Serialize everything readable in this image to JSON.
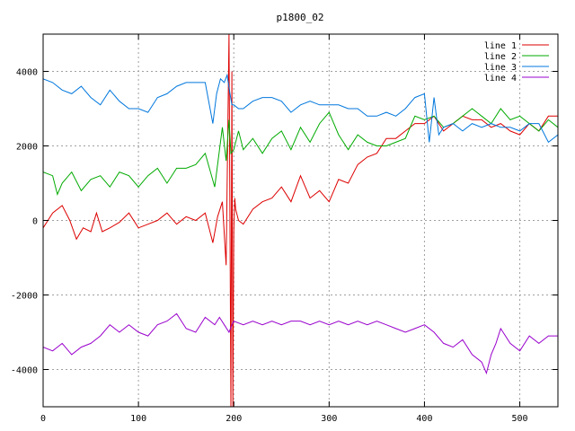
{
  "chart_data": {
    "type": "line",
    "title": "p1800_02",
    "xlabel": "",
    "ylabel": "",
    "xlim": [
      0,
      540
    ],
    "ylim": [
      -5000,
      5000
    ],
    "x_ticks": [
      0,
      100,
      200,
      300,
      400,
      500
    ],
    "y_ticks": [
      -4000,
      -2000,
      0,
      2000,
      4000
    ],
    "grid": true,
    "legend_position": "top-right",
    "series": [
      {
        "name": "line 1",
        "color": "#dd0000",
        "x": [
          0,
          10,
          20,
          28,
          35,
          42,
          50,
          56,
          62,
          70,
          80,
          90,
          100,
          110,
          120,
          130,
          140,
          150,
          160,
          170,
          178,
          183,
          188,
          192,
          195,
          197,
          198,
          199,
          200,
          201,
          202,
          205,
          210,
          220,
          230,
          240,
          250,
          260,
          270,
          280,
          290,
          300,
          310,
          320,
          330,
          340,
          350,
          360,
          370,
          380,
          390,
          400,
          410,
          420,
          430,
          440,
          450,
          460,
          470,
          480,
          490,
          500,
          510,
          520,
          530,
          540
        ],
        "y": [
          -200,
          200,
          400,
          0,
          -500,
          -200,
          -300,
          200,
          -300,
          -200,
          -50,
          200,
          -200,
          -100,
          0,
          200,
          -100,
          100,
          0,
          200,
          -600,
          100,
          500,
          -1200,
          5000,
          -5000,
          4000,
          -5000,
          -300,
          600,
          300,
          0,
          -100,
          300,
          500,
          600,
          900,
          500,
          1200,
          600,
          800,
          500,
          1100,
          1000,
          1500,
          1700,
          1800,
          2200,
          2200,
          2400,
          2600,
          2600,
          2800,
          2400,
          2600,
          2800,
          2700,
          2700,
          2500,
          2600,
          2400,
          2300,
          2600,
          2400,
          2800,
          2800
        ]
      },
      {
        "name": "line 2",
        "color": "#00aa00",
        "x": [
          0,
          10,
          15,
          20,
          30,
          40,
          50,
          60,
          70,
          80,
          90,
          100,
          110,
          120,
          130,
          140,
          150,
          160,
          170,
          180,
          188,
          192,
          195,
          197,
          200,
          205,
          210,
          220,
          230,
          240,
          250,
          260,
          270,
          280,
          290,
          300,
          310,
          320,
          330,
          340,
          350,
          360,
          370,
          380,
          390,
          400,
          410,
          420,
          430,
          440,
          450,
          460,
          470,
          480,
          490,
          500,
          510,
          520,
          530,
          540
        ],
        "y": [
          1300,
          1200,
          700,
          1000,
          1300,
          800,
          1100,
          1200,
          900,
          1300,
          1200,
          900,
          1200,
          1400,
          1000,
          1400,
          1400,
          1500,
          1800,
          900,
          2500,
          1600,
          2700,
          1800,
          1900,
          2400,
          1900,
          2200,
          1800,
          2200,
          2400,
          1900,
          2500,
          2100,
          2600,
          2900,
          2300,
          1900,
          2300,
          2100,
          2000,
          2000,
          2100,
          2200,
          2800,
          2700,
          2800,
          2500,
          2600,
          2800,
          3000,
          2800,
          2600,
          3000,
          2700,
          2800,
          2600,
          2400,
          2700,
          2500
        ]
      },
      {
        "name": "line 3",
        "color": "#0077dd",
        "x": [
          0,
          10,
          20,
          30,
          40,
          50,
          60,
          70,
          80,
          90,
          100,
          110,
          120,
          130,
          140,
          150,
          160,
          170,
          178,
          182,
          186,
          190,
          193,
          196,
          198,
          200,
          205,
          210,
          220,
          230,
          240,
          250,
          260,
          270,
          280,
          290,
          300,
          310,
          320,
          330,
          340,
          350,
          360,
          370,
          380,
          390,
          400,
          405,
          410,
          415,
          420,
          430,
          440,
          450,
          460,
          470,
          480,
          490,
          500,
          510,
          520,
          530,
          540
        ],
        "y": [
          3800,
          3700,
          3500,
          3400,
          3600,
          3300,
          3100,
          3500,
          3200,
          3000,
          3000,
          2900,
          3300,
          3400,
          3600,
          3700,
          3700,
          3700,
          2600,
          3400,
          3800,
          3700,
          3900,
          3400,
          3100,
          3100,
          3000,
          3000,
          3200,
          3300,
          3300,
          3200,
          2900,
          3100,
          3200,
          3100,
          3100,
          3100,
          3000,
          3000,
          2800,
          2800,
          2900,
          2800,
          3000,
          3300,
          3400,
          2100,
          3300,
          2300,
          2500,
          2600,
          2400,
          2600,
          2500,
          2600,
          2500,
          2500,
          2400,
          2600,
          2600,
          2100,
          2300
        ]
      },
      {
        "name": "line 4",
        "color": "#9900cc",
        "x": [
          0,
          10,
          20,
          30,
          40,
          50,
          60,
          70,
          80,
          90,
          100,
          110,
          120,
          130,
          140,
          145,
          150,
          160,
          170,
          180,
          185,
          190,
          195,
          198,
          200,
          210,
          220,
          230,
          240,
          250,
          260,
          270,
          280,
          290,
          300,
          310,
          320,
          330,
          340,
          350,
          360,
          370,
          380,
          390,
          400,
          410,
          420,
          430,
          440,
          450,
          460,
          465,
          470,
          475,
          480,
          490,
          500,
          510,
          520,
          530,
          540
        ],
        "y": [
          -3400,
          -3500,
          -3300,
          -3600,
          -3400,
          -3300,
          -3100,
          -2800,
          -3000,
          -2800,
          -3000,
          -3100,
          -2800,
          -2700,
          -2500,
          -2700,
          -2900,
          -3000,
          -2600,
          -2800,
          -2600,
          -2800,
          -3000,
          -2800,
          -2700,
          -2800,
          -2700,
          -2800,
          -2700,
          -2800,
          -2700,
          -2700,
          -2800,
          -2700,
          -2800,
          -2700,
          -2800,
          -2700,
          -2800,
          -2700,
          -2800,
          -2900,
          -3000,
          -2900,
          -2800,
          -3000,
          -3300,
          -3400,
          -3200,
          -3600,
          -3800,
          -4100,
          -3600,
          -3300,
          -2900,
          -3300,
          -3500,
          -3100,
          -3300,
          -3100,
          -3100
        ]
      }
    ]
  }
}
